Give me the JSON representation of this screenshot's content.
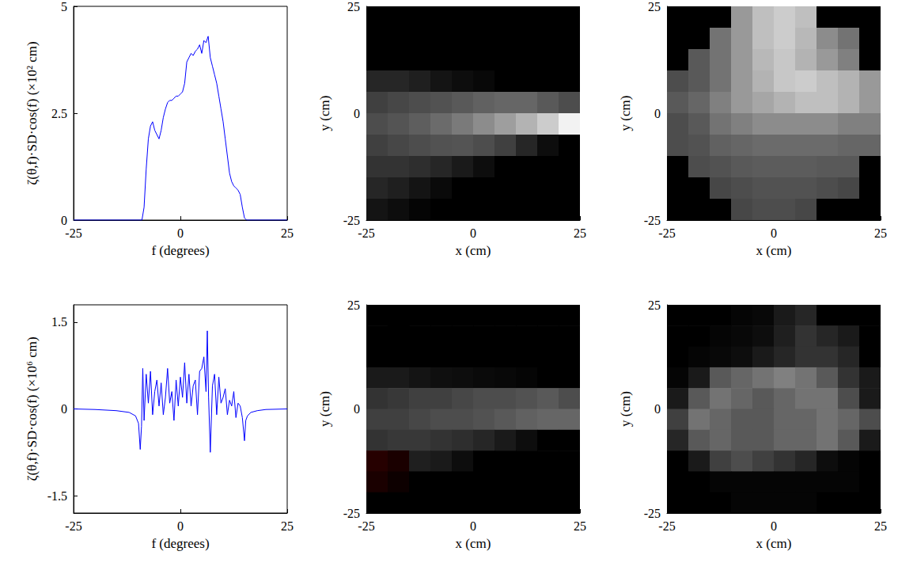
{
  "chart_data": [
    {
      "type": "line",
      "xlabel": "f (degrees)",
      "ylabel": "ζ(θ,f)·SD·cos(f) (×10² cm)",
      "color": "#0000ff",
      "xlim": [
        -25,
        25
      ],
      "xticks": [
        -25,
        0,
        25
      ],
      "ylim": [
        0,
        5
      ],
      "yticks": [
        0,
        2.5,
        5
      ],
      "x": [
        -25,
        -9,
        -8.5,
        -8,
        -7.5,
        -7,
        -6.5,
        -6,
        -5.5,
        -5,
        -4.5,
        -4,
        -3.5,
        -3,
        -2.5,
        -2,
        -1.5,
        -1,
        -0.5,
        0,
        0.5,
        1,
        1.5,
        2,
        2.5,
        3,
        3.5,
        4,
        4.5,
        5,
        5.5,
        6,
        6.5,
        7,
        7.5,
        8,
        8.5,
        9,
        9.5,
        10,
        10.5,
        11,
        11.5,
        12,
        12.5,
        13,
        13.5,
        14,
        14.5,
        15,
        15.5,
        25
      ],
      "values": [
        0,
        0,
        0.3,
        1.2,
        1.9,
        2.2,
        2.3,
        2.1,
        2.0,
        1.9,
        2.1,
        2.4,
        2.6,
        2.75,
        2.8,
        2.8,
        2.85,
        2.9,
        2.9,
        2.95,
        3.0,
        3.2,
        3.7,
        3.8,
        3.9,
        3.85,
        3.95,
        4.0,
        4.1,
        3.9,
        4.2,
        4.15,
        4.3,
        3.8,
        3.6,
        3.4,
        3.2,
        2.9,
        2.6,
        2.3,
        1.9,
        1.5,
        1.1,
        0.9,
        0.8,
        0.75,
        0.7,
        0.6,
        0.3,
        0.05,
        0,
        0
      ]
    },
    {
      "type": "heatmap",
      "xlabel": "x (cm)",
      "ylabel": "y (cm)",
      "xlim": [
        -25,
        25
      ],
      "xticks": [
        -25,
        0,
        25
      ],
      "ylim": [
        -25,
        25
      ],
      "yticks": [
        -25,
        0,
        25
      ],
      "value_range": [
        0,
        1
      ],
      "x": [
        -22.5,
        -17.5,
        -12.5,
        -7.5,
        -2.5,
        2.5,
        7.5,
        12.5,
        17.5,
        22.5
      ],
      "y": [
        22.5,
        17.5,
        12.5,
        7.5,
        2.5,
        -2.5,
        -7.5,
        -12.5,
        -17.5,
        -22.5
      ],
      "cells": [
        [
          0,
          0,
          0,
          0,
          0,
          0,
          0,
          0,
          0,
          0
        ],
        [
          0,
          0,
          0,
          0,
          0,
          0,
          0,
          0,
          0,
          0
        ],
        [
          0,
          0,
          0,
          0,
          0,
          0,
          0,
          0,
          0,
          0
        ],
        [
          0.15,
          0.15,
          0.12,
          0.08,
          0.05,
          0.03,
          0,
          0,
          0,
          0
        ],
        [
          0.25,
          0.28,
          0.3,
          0.32,
          0.35,
          0.38,
          0.4,
          0.4,
          0.35,
          0.3
        ],
        [
          0.3,
          0.33,
          0.37,
          0.42,
          0.48,
          0.55,
          0.62,
          0.7,
          0.8,
          0.95
        ],
        [
          0.25,
          0.28,
          0.3,
          0.32,
          0.33,
          0.3,
          0.25,
          0.15,
          0.05,
          0
        ],
        [
          0.2,
          0.2,
          0.18,
          0.15,
          0.1,
          0.05,
          0,
          0,
          0,
          0
        ],
        [
          0.15,
          0.12,
          0.08,
          0.04,
          0,
          0,
          0,
          0,
          0,
          0
        ],
        [
          0.08,
          0.05,
          0.02,
          0,
          0,
          0,
          0,
          0,
          0,
          0
        ]
      ]
    },
    {
      "type": "heatmap",
      "xlabel": "x (cm)",
      "ylabel": "y (cm)",
      "xlim": [
        -25,
        25
      ],
      "xticks": [
        -25,
        0,
        25
      ],
      "ylim": [
        -25,
        25
      ],
      "yticks": [
        -25,
        0,
        25
      ],
      "value_range": [
        0,
        1
      ],
      "x": [
        -22.5,
        -17.5,
        -12.5,
        -7.5,
        -2.5,
        2.5,
        7.5,
        12.5,
        17.5,
        22.5
      ],
      "y": [
        22.5,
        17.5,
        12.5,
        7.5,
        2.5,
        -2.5,
        -7.5,
        -12.5,
        -17.5,
        -22.5
      ],
      "cells": [
        [
          0,
          0,
          0,
          0.6,
          0.75,
          0.8,
          0.75,
          0,
          0,
          0
        ],
        [
          0,
          0,
          0.45,
          0.6,
          0.75,
          0.8,
          0.72,
          0.55,
          0.45,
          0
        ],
        [
          0,
          0.35,
          0.45,
          0.6,
          0.72,
          0.78,
          0.7,
          0.6,
          0.5,
          0
        ],
        [
          0.3,
          0.35,
          0.45,
          0.6,
          0.7,
          0.78,
          0.8,
          0.75,
          0.7,
          0.6
        ],
        [
          0.35,
          0.4,
          0.5,
          0.6,
          0.65,
          0.7,
          0.75,
          0.75,
          0.7,
          0.6
        ],
        [
          0.3,
          0.35,
          0.45,
          0.5,
          0.55,
          0.55,
          0.55,
          0.55,
          0.5,
          0.5
        ],
        [
          0.3,
          0.32,
          0.38,
          0.4,
          0.42,
          0.42,
          0.42,
          0.42,
          0.4,
          0.4
        ],
        [
          0,
          0.3,
          0.32,
          0.35,
          0.36,
          0.36,
          0.36,
          0.35,
          0.35,
          0
        ],
        [
          0,
          0,
          0.28,
          0.3,
          0.32,
          0.32,
          0.32,
          0.3,
          0.28,
          0
        ],
        [
          0,
          0,
          0,
          0.28,
          0.3,
          0.3,
          0.28,
          0,
          0,
          0
        ]
      ]
    },
    {
      "type": "line",
      "xlabel": "f (degrees)",
      "ylabel": "ζ(θ,f)·SD·cos(f) (×10⁶ cm)",
      "color": "#0000ff",
      "xlim": [
        -25,
        25
      ],
      "xticks": [
        -25,
        0,
        25
      ],
      "ylim": [
        -1.8,
        1.8
      ],
      "yticks": [
        -1.5,
        0,
        1.5
      ],
      "x": [
        -25,
        -20,
        -15,
        -12,
        -10.5,
        -9.8,
        -9.4,
        -9.1,
        -8.8,
        -8.5,
        -8,
        -7.5,
        -7,
        -6.5,
        -6,
        -5.5,
        -5,
        -4.5,
        -4,
        -3.5,
        -3,
        -2.5,
        -2,
        -1.5,
        -1,
        -0.5,
        0,
        0.5,
        1,
        1.5,
        2,
        2.5,
        3,
        3.5,
        4,
        4.5,
        5,
        5.5,
        6,
        6.3,
        6.6,
        7,
        7.5,
        8,
        8.5,
        9,
        9.5,
        10,
        10.5,
        11,
        11.5,
        12,
        12.5,
        13,
        13.5,
        14,
        14.5,
        15,
        15.3,
        15.7,
        16.5,
        18,
        20,
        25
      ],
      "values": [
        0,
        -0.01,
        -0.03,
        -0.06,
        -0.12,
        -0.25,
        -0.7,
        -0.3,
        0.7,
        -0.2,
        0.6,
        0.1,
        0.65,
        -0.1,
        0.3,
        0.5,
        0.05,
        0.45,
        -0.1,
        0.2,
        0.7,
        0.1,
        0.3,
        -0.2,
        0.5,
        0.05,
        0.55,
        0.2,
        0.8,
        0.1,
        0.6,
        0.05,
        0.4,
        0.5,
        -0.1,
        0.65,
        0.7,
        0.9,
        0.3,
        1.35,
        0.2,
        -0.75,
        0.4,
        0.6,
        -0.1,
        0.55,
        0.1,
        0.2,
        0.35,
        -0.1,
        0.15,
        0.05,
        0.3,
        -0.15,
        0.1,
        0.05,
        -0.15,
        -0.55,
        -0.2,
        -0.12,
        -0.06,
        -0.03,
        -0.01,
        0
      ]
    },
    {
      "type": "heatmap",
      "xlabel": "x (cm)",
      "ylabel": "y (cm)",
      "xlim": [
        -25,
        25
      ],
      "xticks": [
        -25,
        0,
        25
      ],
      "ylim": [
        -25,
        25
      ],
      "yticks": [
        -25,
        0,
        25
      ],
      "value_range": [
        -1,
        1
      ],
      "x": [
        -22.5,
        -17.5,
        -12.5,
        -7.5,
        -2.5,
        2.5,
        7.5,
        12.5,
        17.5,
        22.5
      ],
      "y": [
        22.5,
        17.5,
        12.5,
        7.5,
        2.5,
        -2.5,
        -7.5,
        -12.5,
        -17.5,
        -22.5
      ],
      "cells": [
        [
          0,
          0,
          0,
          0,
          0,
          0,
          0,
          0,
          0,
          0
        ],
        [
          0,
          0,
          0,
          0,
          0,
          0,
          0,
          0,
          0,
          0
        ],
        [
          0,
          0,
          0,
          0,
          0,
          0,
          0,
          0,
          0,
          0
        ],
        [
          0.1,
          0.1,
          0.08,
          0.06,
          0.05,
          0.04,
          0.03,
          0.02,
          0,
          0
        ],
        [
          0.2,
          0.22,
          0.25,
          0.25,
          0.28,
          0.3,
          0.3,
          0.32,
          0.35,
          0.3
        ],
        [
          0.25,
          0.25,
          0.28,
          0.3,
          0.3,
          0.32,
          0.35,
          0.38,
          0.4,
          0.4
        ],
        [
          0.2,
          0.22,
          0.22,
          0.2,
          0.18,
          0.15,
          0.1,
          0.05,
          0,
          0
        ],
        [
          -0.15,
          -0.1,
          0.12,
          0.1,
          0.05,
          0,
          0,
          0,
          0,
          0
        ],
        [
          -0.1,
          -0.05,
          0,
          0,
          0,
          0,
          0,
          0,
          0,
          0
        ],
        [
          0,
          0,
          0,
          0,
          0,
          0,
          0,
          0,
          0,
          0
        ]
      ]
    },
    {
      "type": "heatmap",
      "xlabel": "x (cm)",
      "ylabel": "y (cm)",
      "xlim": [
        -25,
        25
      ],
      "xticks": [
        -25,
        0,
        25
      ],
      "ylim": [
        -25,
        25
      ],
      "yticks": [
        -25,
        0,
        25
      ],
      "value_range": [
        0,
        1
      ],
      "x": [
        -22.5,
        -17.5,
        -12.5,
        -7.5,
        -2.5,
        2.5,
        7.5,
        12.5,
        17.5,
        22.5
      ],
      "y": [
        22.5,
        17.5,
        12.5,
        7.5,
        2.5,
        -2.5,
        -7.5,
        -12.5,
        -17.5,
        -22.5
      ],
      "cells": [
        [
          0,
          0,
          0,
          0.02,
          0.03,
          0.1,
          0.15,
          0,
          0,
          0
        ],
        [
          0,
          0,
          0.02,
          0.03,
          0.05,
          0.12,
          0.2,
          0.15,
          0.1,
          0
        ],
        [
          0,
          0.02,
          0.03,
          0.05,
          0.1,
          0.15,
          0.2,
          0.2,
          0.15,
          0
        ],
        [
          0.02,
          0.1,
          0.35,
          0.4,
          0.45,
          0.5,
          0.45,
          0.35,
          0.2,
          0.1
        ],
        [
          0.1,
          0.35,
          0.45,
          0.4,
          0.35,
          0.4,
          0.45,
          0.45,
          0.3,
          0.1
        ],
        [
          0.25,
          0.45,
          0.4,
          0.35,
          0.35,
          0.4,
          0.4,
          0.45,
          0.4,
          0.3
        ],
        [
          0.15,
          0.35,
          0.4,
          0.35,
          0.35,
          0.4,
          0.4,
          0.45,
          0.35,
          0.1
        ],
        [
          0,
          0.1,
          0.25,
          0.3,
          0.25,
          0.2,
          0.15,
          0.05,
          0.02,
          0
        ],
        [
          0,
          0,
          0.02,
          0.02,
          0.02,
          0.02,
          0.02,
          0.02,
          0.02,
          0
        ],
        [
          0,
          0,
          0,
          0.02,
          0.02,
          0.02,
          0.02,
          0,
          0,
          0
        ]
      ]
    }
  ]
}
